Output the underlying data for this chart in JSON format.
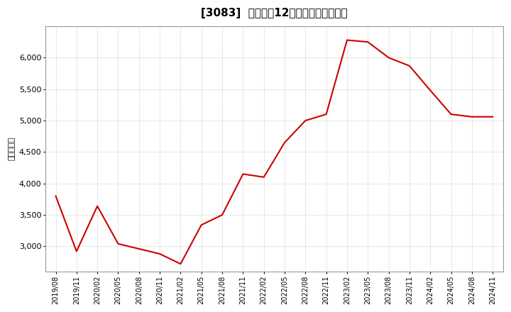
{
  "title": "[3083]  売上高の12か月移動合計の推移",
  "ylabel": "（百万円）",
  "line_color": "#cc0000",
  "background_color": "#ffffff",
  "grid_color": "#aaaaaa",
  "plot_bg_color": "#ffffff",
  "dates": [
    "2019/08",
    "2019/11",
    "2020/02",
    "2020/05",
    "2020/08",
    "2020/11",
    "2021/02",
    "2021/05",
    "2021/08",
    "2021/11",
    "2022/02",
    "2022/05",
    "2022/08",
    "2022/11",
    "2023/02",
    "2023/05",
    "2023/08",
    "2023/11",
    "2024/02",
    "2024/05",
    "2024/08",
    "2024/11"
  ],
  "values": [
    3800,
    2920,
    3640,
    3040,
    2960,
    2880,
    2720,
    3340,
    3500,
    4150,
    4100,
    4650,
    5000,
    5100,
    6280,
    6250,
    6000,
    5870,
    5480,
    5100,
    5060,
    5060
  ],
  "yticks": [
    3000,
    3500,
    4000,
    4500,
    5000,
    5500,
    6000
  ],
  "ylim": [
    2600,
    6500
  ],
  "xtick_labels": [
    "2019/08",
    "2019/11",
    "2020/02",
    "2020/05",
    "2020/08",
    "2020/11",
    "2021/02",
    "2021/05",
    "2021/08",
    "2021/11",
    "2022/02",
    "2022/05",
    "2022/08",
    "2022/11",
    "2023/02",
    "2023/05",
    "2023/08",
    "2023/11",
    "2024/02",
    "2024/05",
    "2024/08",
    "2024/11"
  ]
}
